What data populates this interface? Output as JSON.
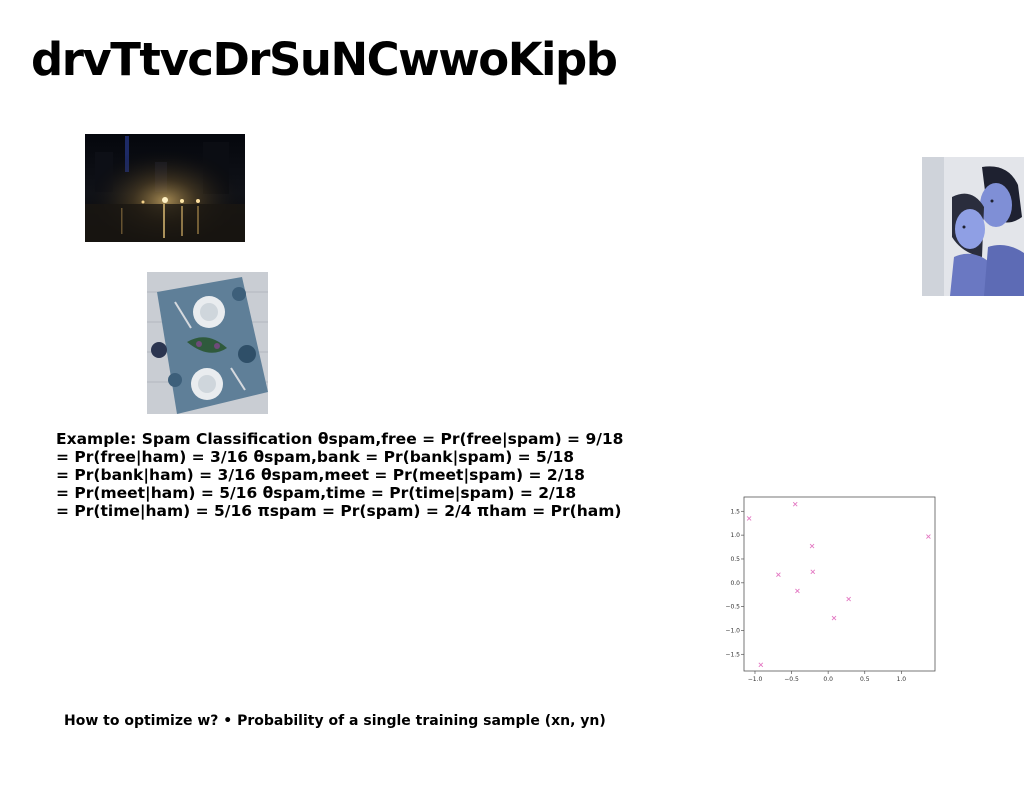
{
  "title": "drvTtvcDrSuNCwwoKipb",
  "images": {
    "city": "city-night-street-photo",
    "table": "table-setting-photo",
    "women": "two-women-portrait-photo"
  },
  "example_lines": [
    "Example: Spam Classification θspam,free = Pr(free|spam) = 9/18",
    "= Pr(free|ham) = 3/16 θspam,bank = Pr(bank|spam) = 5/18",
    "= Pr(bank|ham) = 3/16 θspam,meet = Pr(meet|spam) = 2/18",
    "= Pr(meet|ham) = 5/16 θspam,time = Pr(time|spam) = 2/18",
    "= Pr(time|ham) = 5/16 πspam = Pr(spam) = 2/4 πham = Pr(ham)"
  ],
  "bottom_text": "How to optimize w? • Probability of a single training sample (xn, yn)",
  "chart_data": {
    "type": "scatter",
    "marker": "x",
    "color": "#e377c2",
    "x": [
      -1.08,
      -0.92,
      -0.68,
      -0.45,
      -0.42,
      -0.22,
      -0.21,
      0.08,
      0.28,
      1.37
    ],
    "y": [
      1.35,
      -1.72,
      0.17,
      1.65,
      -0.17,
      0.77,
      0.23,
      -0.74,
      -0.34,
      0.97
    ],
    "xlim": [
      -1.15,
      1.46
    ],
    "ylim": [
      -1.85,
      1.8
    ],
    "xticks": [
      -1.0,
      -0.5,
      0.0,
      0.5,
      1.0
    ],
    "xtick_labels": [
      "−1.0",
      "−0.5",
      "0.0",
      "0.5",
      "1.0"
    ],
    "yticks": [
      1.5,
      1.0,
      0.5,
      0.0,
      -0.5,
      -1.0,
      -1.5
    ],
    "ytick_labels": [
      "1.5",
      "1.0",
      "0.5",
      "0.0",
      "−0.5",
      "−1.0",
      "−1.5"
    ],
    "grid": false
  }
}
